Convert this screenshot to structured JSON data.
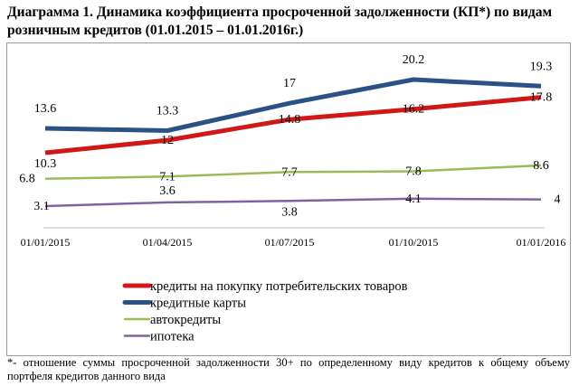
{
  "title": "Диаграмма 1. Динамика коэффициента просроченной задолженности (КП*) по видам розничным кредитов (01.01.2015 – 01.01.2016г.)",
  "footnote": "*- отношение суммы просроченной задолженности 30+ по определенному виду кредитов к общему объему портфеля кредитов данного вида",
  "chart_data": {
    "type": "line",
    "title": "Диаграмма 1. Динамика коэффициента просроченной задолженности (КП*) по видам розничным кредитов (01.01.2015 – 01.01.2016г.)",
    "categories": [
      "01/01/2015",
      "01/04/2015",
      "01/07/2015",
      "01/10/2015",
      "01/01/2016"
    ],
    "series": [
      {
        "name": "кредиты на покупку  потребительских  товаров",
        "color": "#d01818",
        "values": [
          10.3,
          12,
          14.8,
          16.2,
          17.8
        ]
      },
      {
        "name": "кредитные  карты",
        "color": "#2a5285",
        "values": [
          13.6,
          13.3,
          17,
          20.2,
          19.3
        ]
      },
      {
        "name": "автокредиты",
        "color": "#9bbb59",
        "values": [
          6.8,
          7.1,
          7.7,
          7.8,
          8.6
        ]
      },
      {
        "name": "ипотека",
        "color": "#8064a2",
        "values": [
          3.1,
          3.6,
          3.8,
          4.1,
          4
        ]
      }
    ],
    "xlabel": "",
    "ylabel": "",
    "ylim": [
      0,
      24
    ],
    "grid": false,
    "legend": "bottom"
  }
}
